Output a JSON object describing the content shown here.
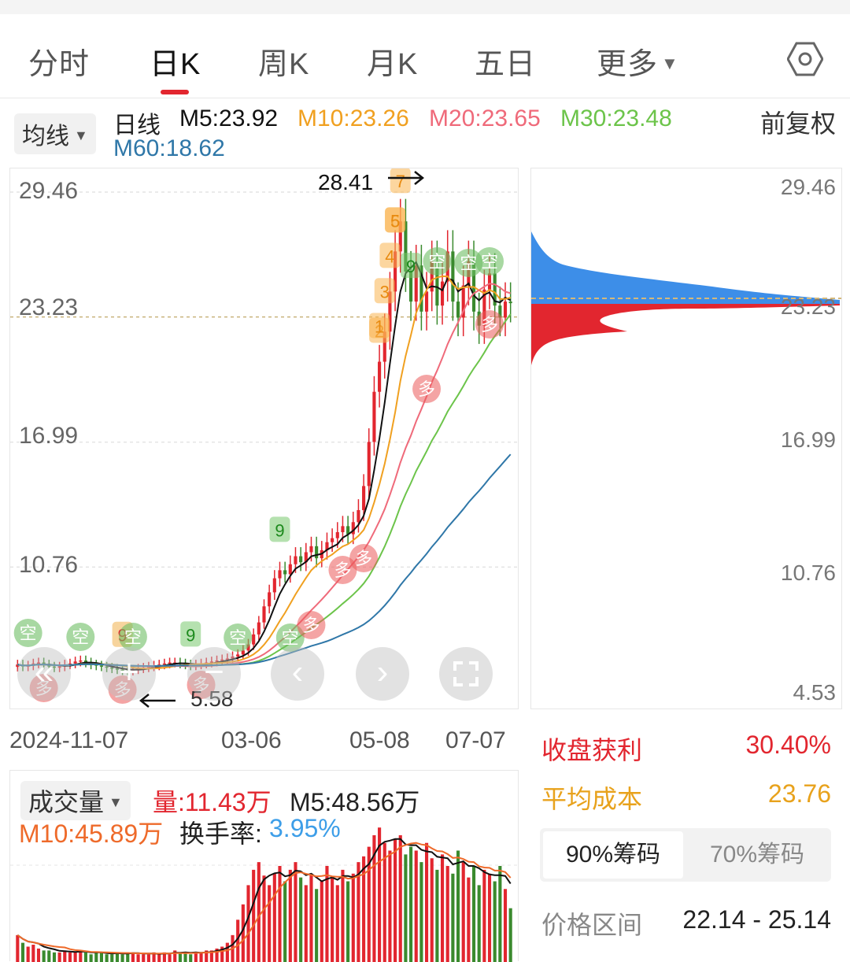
{
  "tabs": [
    {
      "label": "分时"
    },
    {
      "label": "日K"
    },
    {
      "label": "周K"
    },
    {
      "label": "月K"
    },
    {
      "label": "五日"
    },
    {
      "label": "更多"
    }
  ],
  "active_tab": "日K",
  "indicator_chip": "均线",
  "ma": {
    "period": "日线",
    "m5": "M5:23.92",
    "m10": "M10:23.26",
    "m20": "M20:23.65",
    "m30": "M30:23.48",
    "m60": "M60:18.62"
  },
  "adjust": "前复权",
  "colors": {
    "up": "#e2262f",
    "down": "#3a8a2e",
    "m5": "#111111",
    "m10": "#f0a020",
    "m20": "#ef6a7a",
    "m30": "#6cc44a",
    "m60": "#2f77a8",
    "profit_red": "#e2262f",
    "cost_orange": "#e8a21c",
    "chip_blue": "#3d8ee8"
  },
  "price_axis": [
    "29.46",
    "23.23",
    "16.99",
    "10.76",
    "4.53"
  ],
  "annotations": {
    "high": "28.41",
    "low": "5.58"
  },
  "date_axis": [
    "2024-11-07",
    "03-06",
    "05-08",
    "07-07"
  ],
  "signal_marks": [
    "6",
    "9",
    "7",
    "5",
    "4",
    "3",
    "2",
    "1",
    "9",
    "9",
    "9",
    "空",
    "多"
  ],
  "controls": [
    "«",
    "+",
    "−",
    "‹",
    "›"
  ],
  "chip_stats": {
    "profit_label": "收盘获利",
    "profit_value": "30.40%",
    "cost_label": "平均成本",
    "cost_value": "23.76",
    "tab_90": "90%筹码",
    "tab_70": "70%筹码",
    "range_label": "价格区间",
    "range_value": "22.14 - 25.14"
  },
  "volume": {
    "chip": "成交量",
    "vol": "量:11.43万",
    "m5": "M5:48.56万",
    "m10": "M10:45.89万",
    "turnover_label": "换手率:",
    "turnover_value": "3.95%"
  },
  "chart_data": {
    "type": "candlestick",
    "y_range": [
      4.53,
      29.46
    ],
    "x_start": "2024-11-07",
    "x_end": "07-07",
    "closes": [
      5.9,
      5.8,
      5.85,
      5.95,
      6.0,
      5.9,
      5.8,
      5.75,
      5.8,
      5.9,
      5.95,
      6.05,
      6.1,
      6.0,
      5.9,
      5.85,
      5.8,
      5.75,
      5.7,
      5.65,
      5.6,
      5.58,
      5.65,
      5.7,
      5.75,
      5.8,
      5.85,
      5.9,
      5.95,
      6.0,
      6.0,
      5.95,
      5.9,
      5.85,
      5.9,
      5.95,
      6.0,
      6.05,
      6.1,
      6.15,
      6.2,
      6.3,
      6.4,
      6.6,
      6.9,
      7.4,
      8.0,
      8.8,
      9.5,
      10.2,
      10.6,
      10.4,
      10.9,
      11.3,
      11.0,
      11.5,
      11.8,
      11.2,
      11.6,
      12.0,
      12.2,
      12.5,
      12.8,
      12.4,
      13.0,
      13.6,
      14.8,
      17.0,
      19.5,
      21.0,
      22.5,
      24.5,
      26.5,
      28.0,
      25.5,
      24.0,
      25.8,
      23.5,
      24.5,
      26.0,
      23.8,
      25.0,
      26.5,
      24.0,
      23.2,
      24.8,
      26.0,
      23.5,
      22.8,
      24.6,
      25.4,
      23.8,
      23.2,
      24.0,
      23.92
    ],
    "volumes": [
      14,
      10,
      8,
      9,
      7,
      6,
      6,
      5,
      5,
      6,
      5,
      5,
      6,
      5,
      4,
      5,
      5,
      4,
      4,
      5,
      4,
      5,
      5,
      4,
      4,
      4,
      5,
      4,
      5,
      4,
      6,
      5,
      5,
      4,
      5,
      5,
      6,
      6,
      7,
      8,
      10,
      14,
      22,
      30,
      40,
      48,
      52,
      45,
      40,
      46,
      50,
      42,
      48,
      52,
      44,
      40,
      46,
      38,
      42,
      50,
      44,
      40,
      48,
      42,
      46,
      52,
      55,
      60,
      66,
      70,
      62,
      58,
      64,
      66,
      56,
      60,
      58,
      52,
      62,
      54,
      48,
      56,
      50,
      46,
      58,
      52,
      44,
      50,
      40,
      48,
      46,
      42,
      50,
      38,
      28
    ]
  }
}
